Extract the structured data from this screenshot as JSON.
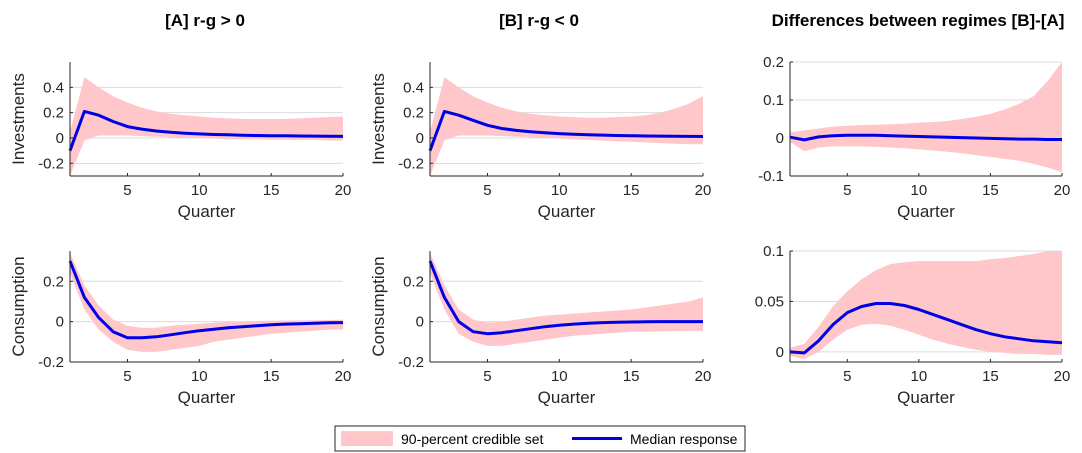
{
  "column_titles": [
    "[A] r-g > 0",
    "[B] r-g < 0",
    "Differences between regimes [B]-[A]"
  ],
  "legend": {
    "band_label": "90-percent credible set",
    "line_label": "Median response",
    "position": "bottom-center"
  },
  "colors": {
    "band": "#ffc7c9",
    "line": "#0000e6",
    "grid": "#dcdcdc",
    "axis": "#262626"
  },
  "chart_data": [
    {
      "type": "line",
      "title": "[A] r-g > 0",
      "xlabel": "Quarter",
      "ylabel": "Investments",
      "xlim": [
        1,
        20
      ],
      "ylim": [
        -0.3,
        0.6
      ],
      "xticks": [
        5,
        10,
        15,
        20
      ],
      "yticks": [
        -0.2,
        0,
        0.2,
        0.4
      ],
      "ytick_labels": [
        "-0.2",
        "0",
        "0.2",
        "0.4"
      ],
      "grid": "horizontal",
      "x": [
        1,
        2,
        3,
        4,
        5,
        6,
        7,
        8,
        9,
        10,
        11,
        12,
        13,
        14,
        15,
        16,
        17,
        18,
        19,
        20
      ],
      "series": [
        {
          "values": [
            -0.1,
            0.21,
            0.18,
            0.13,
            0.09,
            0.07,
            0.055,
            0.045,
            0.038,
            0.032,
            0.028,
            0.025,
            0.022,
            0.02,
            0.018,
            0.017,
            0.016,
            0.015,
            0.014,
            0.013
          ]
        }
      ],
      "band_lower": [
        -0.3,
        -0.02,
        0.02,
        0.02,
        0.02,
        0.015,
        0.01,
        0.005,
        0.0,
        0.0,
        -0.005,
        -0.01,
        -0.01,
        -0.01,
        -0.015,
        -0.015,
        -0.015,
        -0.015,
        -0.02,
        -0.02
      ],
      "band_upper": [
        0.05,
        0.48,
        0.4,
        0.33,
        0.28,
        0.24,
        0.21,
        0.19,
        0.18,
        0.17,
        0.16,
        0.155,
        0.15,
        0.15,
        0.15,
        0.15,
        0.155,
        0.16,
        0.165,
        0.17
      ]
    },
    {
      "type": "line",
      "title": "[B] r-g < 0",
      "xlabel": "Quarter",
      "ylabel": "Investments",
      "xlim": [
        1,
        20
      ],
      "ylim": [
        -0.3,
        0.6
      ],
      "xticks": [
        5,
        10,
        15,
        20
      ],
      "yticks": [
        -0.2,
        0,
        0.2,
        0.4
      ],
      "ytick_labels": [
        "-0.2",
        "0",
        "0.2",
        "0.4"
      ],
      "grid": "horizontal",
      "x": [
        1,
        2,
        3,
        4,
        5,
        6,
        7,
        8,
        9,
        10,
        11,
        12,
        13,
        14,
        15,
        16,
        17,
        18,
        19,
        20
      ],
      "series": [
        {
          "values": [
            -0.1,
            0.21,
            0.18,
            0.14,
            0.1,
            0.075,
            0.06,
            0.05,
            0.042,
            0.035,
            0.03,
            0.026,
            0.023,
            0.02,
            0.018,
            0.016,
            0.015,
            0.014,
            0.013,
            0.012
          ]
        }
      ],
      "band_lower": [
        -0.3,
        -0.02,
        0.02,
        0.02,
        0.02,
        0.015,
        0.01,
        0.005,
        0.0,
        -0.005,
        -0.01,
        -0.015,
        -0.02,
        -0.025,
        -0.03,
        -0.035,
        -0.04,
        -0.045,
        -0.05,
        -0.05
      ],
      "band_upper": [
        0.05,
        0.48,
        0.4,
        0.33,
        0.28,
        0.24,
        0.21,
        0.19,
        0.18,
        0.17,
        0.165,
        0.16,
        0.16,
        0.165,
        0.17,
        0.18,
        0.2,
        0.23,
        0.27,
        0.33
      ]
    },
    {
      "type": "line",
      "title": "Differences between regimes [B]-[A]",
      "xlabel": "Quarter",
      "ylabel": "",
      "xlim": [
        1,
        20
      ],
      "ylim": [
        -0.1,
        0.2
      ],
      "xticks": [
        5,
        10,
        15,
        20
      ],
      "yticks": [
        -0.1,
        0,
        0.1,
        0.2
      ],
      "ytick_labels": [
        "-0.1",
        "0",
        "0.1",
        "0.2"
      ],
      "grid": "horizontal",
      "x": [
        1,
        2,
        3,
        4,
        5,
        6,
        7,
        8,
        9,
        10,
        11,
        12,
        13,
        14,
        15,
        16,
        17,
        18,
        19,
        20
      ],
      "series": [
        {
          "values": [
            0.002,
            -0.005,
            0.003,
            0.006,
            0.007,
            0.007,
            0.007,
            0.006,
            0.005,
            0.004,
            0.003,
            0.002,
            0.001,
            0.0,
            -0.001,
            -0.002,
            -0.003,
            -0.003,
            -0.004,
            -0.004
          ]
        }
      ],
      "band_lower": [
        -0.01,
        -0.035,
        -0.025,
        -0.022,
        -0.022,
        -0.022,
        -0.023,
        -0.025,
        -0.027,
        -0.03,
        -0.033,
        -0.036,
        -0.04,
        -0.045,
        -0.05,
        -0.055,
        -0.06,
        -0.068,
        -0.078,
        -0.09
      ],
      "band_upper": [
        0.015,
        0.02,
        0.025,
        0.03,
        0.032,
        0.034,
        0.035,
        0.036,
        0.038,
        0.04,
        0.042,
        0.045,
        0.05,
        0.056,
        0.064,
        0.075,
        0.09,
        0.11,
        0.15,
        0.2
      ]
    },
    {
      "type": "line",
      "title": "",
      "xlabel": "Quarter",
      "ylabel": "Consumption",
      "xlim": [
        1,
        20
      ],
      "ylim": [
        -0.2,
        0.35
      ],
      "xticks": [
        5,
        10,
        15,
        20
      ],
      "yticks": [
        -0.2,
        0,
        0.2
      ],
      "ytick_labels": [
        "-0.2",
        "0",
        "0.2"
      ],
      "grid": "horizontal",
      "x": [
        1,
        2,
        3,
        4,
        5,
        6,
        7,
        8,
        9,
        10,
        11,
        12,
        13,
        14,
        15,
        16,
        17,
        18,
        19,
        20
      ],
      "series": [
        {
          "values": [
            0.3,
            0.12,
            0.02,
            -0.05,
            -0.08,
            -0.08,
            -0.075,
            -0.065,
            -0.055,
            -0.045,
            -0.038,
            -0.03,
            -0.025,
            -0.02,
            -0.015,
            -0.012,
            -0.01,
            -0.008,
            -0.006,
            -0.005
          ]
        }
      ],
      "band_lower": [
        0.24,
        0.06,
        -0.04,
        -0.1,
        -0.14,
        -0.15,
        -0.15,
        -0.14,
        -0.13,
        -0.12,
        -0.1,
        -0.09,
        -0.08,
        -0.07,
        -0.06,
        -0.055,
        -0.05,
        -0.045,
        -0.04,
        -0.04
      ],
      "band_upper": [
        0.34,
        0.18,
        0.08,
        0.01,
        -0.02,
        -0.03,
        -0.03,
        -0.02,
        -0.015,
        -0.01,
        -0.005,
        -0.002,
        0.0,
        0.003,
        0.005,
        0.005,
        0.006,
        0.007,
        0.008,
        0.01
      ]
    },
    {
      "type": "line",
      "title": "",
      "xlabel": "Quarter",
      "ylabel": "Consumption",
      "xlim": [
        1,
        20
      ],
      "ylim": [
        -0.2,
        0.35
      ],
      "xticks": [
        5,
        10,
        15,
        20
      ],
      "yticks": [
        -0.2,
        0,
        0.2
      ],
      "ytick_labels": [
        "-0.2",
        "0",
        "0.2"
      ],
      "grid": "horizontal",
      "x": [
        1,
        2,
        3,
        4,
        5,
        6,
        7,
        8,
        9,
        10,
        11,
        12,
        13,
        14,
        15,
        16,
        17,
        18,
        19,
        20
      ],
      "series": [
        {
          "values": [
            0.3,
            0.12,
            0.0,
            -0.05,
            -0.06,
            -0.055,
            -0.045,
            -0.035,
            -0.025,
            -0.018,
            -0.012,
            -0.008,
            -0.005,
            -0.003,
            -0.002,
            -0.001,
            0.0,
            0.0,
            0.0,
            0.0
          ]
        }
      ],
      "band_lower": [
        0.24,
        0.06,
        -0.06,
        -0.1,
        -0.12,
        -0.12,
        -0.11,
        -0.1,
        -0.09,
        -0.08,
        -0.07,
        -0.065,
        -0.06,
        -0.055,
        -0.05,
        -0.05,
        -0.048,
        -0.046,
        -0.045,
        -0.045
      ],
      "band_upper": [
        0.34,
        0.18,
        0.06,
        0.01,
        -0.005,
        0.0,
        0.01,
        0.02,
        0.03,
        0.035,
        0.04,
        0.045,
        0.05,
        0.055,
        0.06,
        0.07,
        0.08,
        0.09,
        0.1,
        0.12
      ]
    },
    {
      "type": "line",
      "title": "",
      "xlabel": "Quarter",
      "ylabel": "",
      "xlim": [
        1,
        20
      ],
      "ylim": [
        -0.01,
        0.1
      ],
      "xticks": [
        5,
        10,
        15,
        20
      ],
      "yticks": [
        0,
        0.05,
        0.1
      ],
      "ytick_labels": [
        "0",
        "0.05",
        "0.1"
      ],
      "grid": "horizontal",
      "x": [
        1,
        2,
        3,
        4,
        5,
        6,
        7,
        8,
        9,
        10,
        11,
        12,
        13,
        14,
        15,
        16,
        17,
        18,
        19,
        20
      ],
      "series": [
        {
          "values": [
            0.0,
            -0.001,
            0.011,
            0.027,
            0.039,
            0.045,
            0.048,
            0.048,
            0.046,
            0.042,
            0.037,
            0.032,
            0.027,
            0.022,
            0.018,
            0.015,
            0.013,
            0.011,
            0.01,
            0.009
          ]
        }
      ],
      "band_lower": [
        -0.004,
        -0.007,
        0.0,
        0.012,
        0.022,
        0.027,
        0.028,
        0.026,
        0.022,
        0.017,
        0.012,
        0.008,
        0.005,
        0.002,
        0.0,
        -0.001,
        -0.002,
        -0.002,
        -0.003,
        -0.003
      ],
      "band_upper": [
        0.004,
        0.008,
        0.025,
        0.045,
        0.06,
        0.072,
        0.081,
        0.087,
        0.089,
        0.09,
        0.09,
        0.09,
        0.09,
        0.09,
        0.092,
        0.093,
        0.095,
        0.097,
        0.1,
        0.1
      ]
    }
  ]
}
